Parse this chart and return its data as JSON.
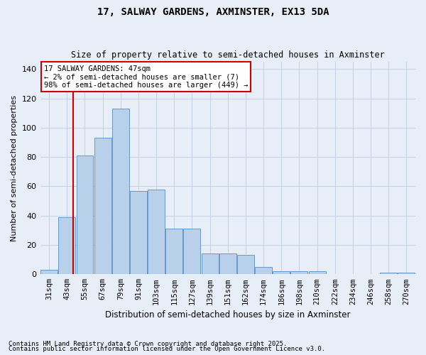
{
  "title_line1": "17, SALWAY GARDENS, AXMINSTER, EX13 5DA",
  "title_line2": "Size of property relative to semi-detached houses in Axminster",
  "xlabel": "Distribution of semi-detached houses by size in Axminster",
  "ylabel": "Number of semi-detached properties",
  "categories": [
    "31sqm",
    "43sqm",
    "55sqm",
    "67sqm",
    "79sqm",
    "91sqm",
    "103sqm",
    "115sqm",
    "127sqm",
    "139sqm",
    "151sqm",
    "162sqm",
    "174sqm",
    "186sqm",
    "198sqm",
    "210sqm",
    "222sqm",
    "234sqm",
    "246sqm",
    "258sqm",
    "270sqm"
  ],
  "values": [
    3,
    39,
    81,
    93,
    113,
    57,
    58,
    31,
    31,
    14,
    14,
    13,
    5,
    2,
    2,
    2,
    0,
    0,
    0,
    1,
    1
  ],
  "bar_color": "#b8d0ea",
  "bar_edge_color": "#6699cc",
  "vline_color": "#cc0000",
  "annotation_box_color": "#cc0000",
  "property_label": "17 SALWAY GARDENS: 47sqm",
  "smaller_pct": "2%",
  "smaller_count": 7,
  "larger_pct": "98%",
  "larger_count": 449,
  "vline_x": 1.33,
  "ylim": [
    0,
    145
  ],
  "yticks": [
    0,
    20,
    40,
    60,
    80,
    100,
    120,
    140
  ],
  "footnote1": "Contains HM Land Registry data © Crown copyright and database right 2025.",
  "footnote2": "Contains public sector information licensed under the Open Government Licence v3.0.",
  "bg_color": "#e8eef8",
  "plot_bg_color": "#e8eef8",
  "title_fontsize": 10,
  "subtitle_fontsize": 8.5,
  "ylabel_fontsize": 8,
  "xlabel_fontsize": 8.5,
  "tick_fontsize": 7.5,
  "annot_fontsize": 7.5,
  "footnote_fontsize": 6.5
}
